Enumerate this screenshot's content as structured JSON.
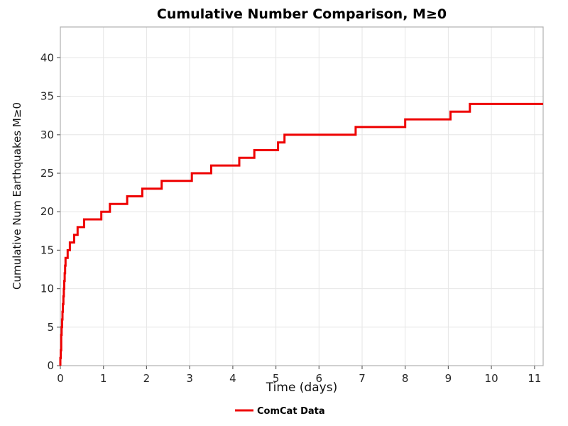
{
  "page": {
    "background": "#ffffff"
  },
  "chart_data": {
    "type": "line",
    "step_mode": "post",
    "title": "Cumulative Number Comparison, M≥0",
    "xlabel": "Time (days)",
    "ylabel": "Cumulative Num Earthquakes M≥0",
    "xlim": [
      0,
      11.2
    ],
    "ylim": [
      0,
      44
    ],
    "xticks": [
      0,
      1,
      2,
      3,
      4,
      5,
      6,
      7,
      8,
      9,
      10,
      11
    ],
    "yticks": [
      0,
      5,
      10,
      15,
      20,
      25,
      30,
      35,
      40
    ],
    "grid": true,
    "legend_position": "bottom-center",
    "series": [
      {
        "name": "ComCat Data",
        "color": "#ee0000",
        "line_width": 3,
        "points": [
          [
            0.0,
            1
          ],
          [
            0.01,
            2
          ],
          [
            0.02,
            3
          ],
          [
            0.02,
            4
          ],
          [
            0.03,
            5
          ],
          [
            0.04,
            6
          ],
          [
            0.05,
            7
          ],
          [
            0.06,
            8
          ],
          [
            0.07,
            9
          ],
          [
            0.08,
            10
          ],
          [
            0.09,
            11
          ],
          [
            0.1,
            12
          ],
          [
            0.11,
            13
          ],
          [
            0.12,
            14
          ],
          [
            0.17,
            15
          ],
          [
            0.22,
            16
          ],
          [
            0.32,
            17
          ],
          [
            0.4,
            18
          ],
          [
            0.55,
            19
          ],
          [
            0.95,
            20
          ],
          [
            1.15,
            21
          ],
          [
            1.55,
            22
          ],
          [
            1.9,
            23
          ],
          [
            2.35,
            24
          ],
          [
            3.05,
            25
          ],
          [
            3.5,
            26
          ],
          [
            4.15,
            27
          ],
          [
            4.5,
            28
          ],
          [
            5.05,
            29
          ],
          [
            5.2,
            30
          ],
          [
            6.85,
            31
          ],
          [
            8.0,
            32
          ],
          [
            9.05,
            33
          ],
          [
            9.5,
            34
          ]
        ]
      }
    ]
  }
}
